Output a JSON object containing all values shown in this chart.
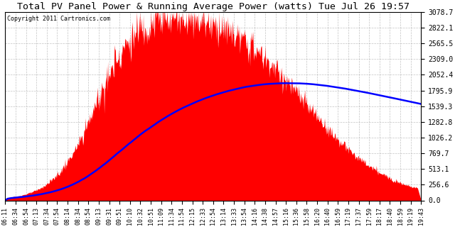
{
  "title": "Total PV Panel Power & Running Average Power (watts) Tue Jul 26 19:57",
  "copyright": "Copyright 2011 Cartronics.com",
  "background_color": "#ffffff",
  "plot_bg_color": "#ffffff",
  "grid_color": "#aaaaaa",
  "fill_color": "#ff0000",
  "line_color": "#0000ff",
  "y_ticks": [
    0.0,
    256.6,
    513.1,
    769.7,
    1026.2,
    1282.8,
    1539.3,
    1795.9,
    2052.4,
    2309.0,
    2565.5,
    2822.1,
    3078.7
  ],
  "ylim": [
    0,
    3078.7
  ],
  "n_points": 820,
  "x_labels": [
    "06:11",
    "06:34",
    "06:54",
    "07:13",
    "07:34",
    "07:54",
    "08:14",
    "08:34",
    "08:54",
    "09:13",
    "09:31",
    "09:51",
    "10:10",
    "10:32",
    "10:51",
    "11:09",
    "11:34",
    "11:54",
    "12:15",
    "12:33",
    "12:54",
    "13:14",
    "13:33",
    "13:54",
    "14:16",
    "14:38",
    "14:57",
    "15:16",
    "15:36",
    "15:58",
    "16:20",
    "16:40",
    "16:59",
    "17:19",
    "17:37",
    "17:59",
    "18:17",
    "18:40",
    "18:59",
    "19:19",
    "19:43"
  ]
}
